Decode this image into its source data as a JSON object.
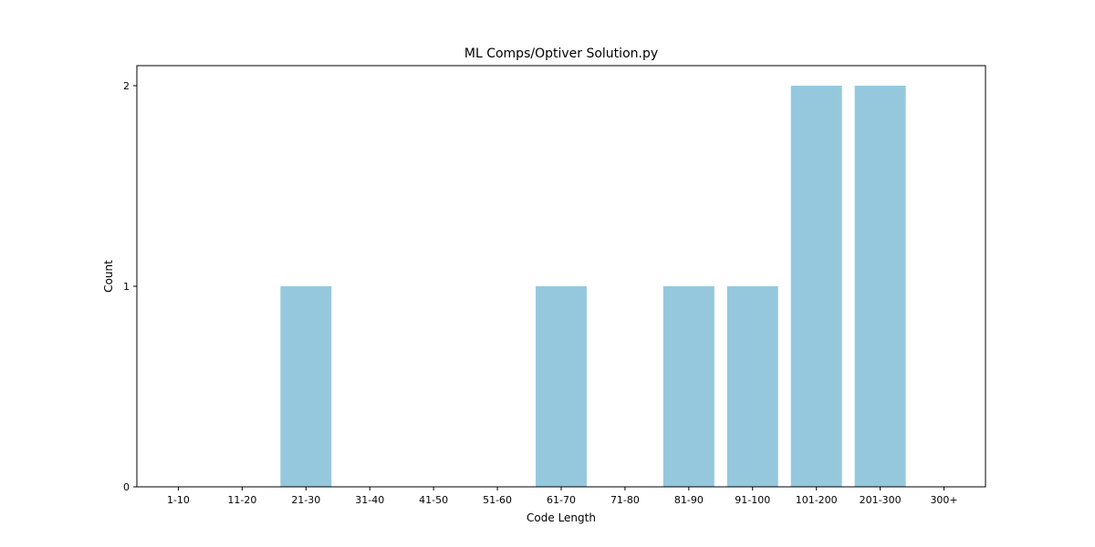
{
  "chart_data": {
    "type": "bar",
    "title": "ML Comps/Optiver Solution.py",
    "xlabel": "Code Length",
    "ylabel": "Count",
    "categories": [
      "1-10",
      "11-20",
      "21-30",
      "31-40",
      "41-50",
      "51-60",
      "61-70",
      "71-80",
      "81-90",
      "91-100",
      "101-200",
      "201-300",
      "300+"
    ],
    "values": [
      0,
      0,
      1,
      0,
      0,
      0,
      1,
      0,
      1,
      1,
      2,
      2,
      0
    ],
    "yticks": [
      "0",
      "1",
      "2"
    ],
    "ylim": [
      0,
      2.1
    ],
    "bar_color": "#95c8dd",
    "grid": false,
    "legend": "none"
  }
}
